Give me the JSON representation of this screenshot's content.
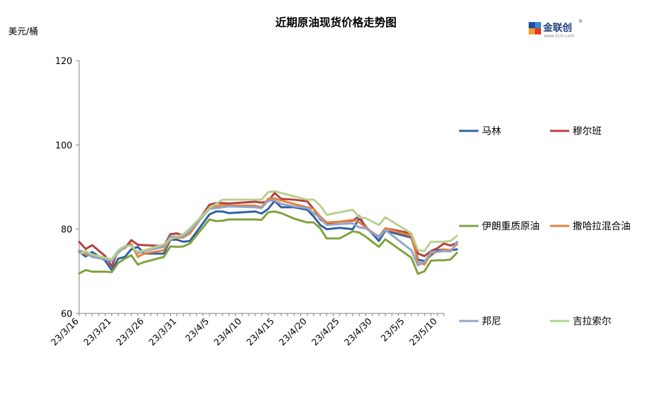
{
  "chart_data": {
    "type": "line",
    "title": "近期原油现货价格走势图",
    "ylabel": "美元/桶",
    "xlabel": "",
    "ylim": [
      60,
      120
    ],
    "yticks": [
      "60",
      "80",
      "100",
      "120"
    ],
    "xtick_labels": [
      "23/3/16",
      "23/3/21",
      "23/3/26",
      "23/3/31",
      "23/4/5",
      "23/4/10",
      "23/4/15",
      "23/4/20",
      "23/4/25",
      "23/4/30",
      "23/5/5",
      "23/5/10"
    ],
    "x_range": [
      "2023-03-16",
      "2023-05-11"
    ],
    "grid": false,
    "legend": "right",
    "series": [
      {
        "name": "马林",
        "color": "#2e5fa0",
        "points": [
          [
            "2023-03-16",
            74.6
          ],
          [
            "2023-03-17",
            73.5
          ],
          [
            "2023-03-18",
            74.6
          ],
          [
            "2023-03-20",
            72.5
          ],
          [
            "2023-03-21",
            70.3
          ],
          [
            "2023-03-22",
            73.0
          ],
          [
            "2023-03-23",
            73.4
          ],
          [
            "2023-03-24",
            75.2
          ],
          [
            "2023-03-25",
            75.8
          ],
          [
            "2023-03-26",
            74.2
          ],
          [
            "2023-03-29",
            74.2
          ],
          [
            "2023-03-30",
            77.5
          ],
          [
            "2023-03-31",
            77.5
          ],
          [
            "2023-04-01",
            77.0
          ],
          [
            "2023-04-02",
            77.2
          ],
          [
            "2023-04-05",
            83.5
          ],
          [
            "2023-04-06",
            84.2
          ],
          [
            "2023-04-07",
            84.2
          ],
          [
            "2023-04-08",
            83.8
          ],
          [
            "2023-04-12",
            84.2
          ],
          [
            "2023-04-13",
            83.7
          ],
          [
            "2023-04-14",
            84.8
          ],
          [
            "2023-04-15",
            86.7
          ],
          [
            "2023-04-16",
            85.2
          ],
          [
            "2023-04-18",
            85.2
          ],
          [
            "2023-04-20",
            84.6
          ],
          [
            "2023-04-21",
            83.0
          ],
          [
            "2023-04-22",
            81.0
          ],
          [
            "2023-04-23",
            80.0
          ],
          [
            "2023-04-25",
            80.3
          ],
          [
            "2023-04-27",
            80.0
          ],
          [
            "2023-04-28",
            82.6
          ],
          [
            "2023-04-29",
            80.6
          ],
          [
            "2023-05-01",
            77.2
          ],
          [
            "2023-05-02",
            79.6
          ],
          [
            "2023-05-06",
            78.0
          ],
          [
            "2023-05-07",
            72.8
          ],
          [
            "2023-05-08",
            72.4
          ],
          [
            "2023-05-09",
            73.8
          ],
          [
            "2023-05-10",
            75.0
          ],
          [
            "2023-05-11",
            75.2
          ],
          [
            "2023-05-12",
            75.0
          ],
          [
            "2023-05-13",
            75.2
          ]
        ]
      },
      {
        "name": "穆尔班",
        "color": "#b5403c",
        "points": [
          [
            "2023-03-16",
            77.0
          ],
          [
            "2023-03-17",
            75.3
          ],
          [
            "2023-03-18",
            76.2
          ],
          [
            "2023-03-20",
            73.6
          ],
          [
            "2023-03-21",
            71.2
          ],
          [
            "2023-03-22",
            75.0
          ],
          [
            "2023-03-23",
            75.5
          ],
          [
            "2023-03-24",
            77.4
          ],
          [
            "2023-03-25",
            76.3
          ],
          [
            "2023-03-26",
            76.2
          ],
          [
            "2023-03-29",
            76.0
          ],
          [
            "2023-03-30",
            78.8
          ],
          [
            "2023-03-31",
            79.0
          ],
          [
            "2023-04-01",
            78.5
          ],
          [
            "2023-04-02",
            79.2
          ],
          [
            "2023-04-05",
            85.8
          ],
          [
            "2023-04-06",
            86.2
          ],
          [
            "2023-04-07",
            86.2
          ],
          [
            "2023-04-08",
            86.1
          ],
          [
            "2023-04-12",
            86.5
          ],
          [
            "2023-04-13",
            86.3
          ],
          [
            "2023-04-14",
            86.6
          ],
          [
            "2023-04-15",
            88.6
          ],
          [
            "2023-04-16",
            87.2
          ],
          [
            "2023-04-18",
            87.0
          ],
          [
            "2023-04-20",
            86.6
          ],
          [
            "2023-04-21",
            84.8
          ],
          [
            "2023-04-22",
            82.3
          ],
          [
            "2023-04-23",
            81.3
          ],
          [
            "2023-04-25",
            81.8
          ],
          [
            "2023-04-27",
            82.0
          ],
          [
            "2023-04-28",
            83.1
          ],
          [
            "2023-04-29",
            80.3
          ],
          [
            "2023-05-01",
            78.2
          ],
          [
            "2023-05-02",
            80.2
          ],
          [
            "2023-05-06",
            79.0
          ],
          [
            "2023-05-07",
            74.2
          ],
          [
            "2023-05-08",
            73.6
          ],
          [
            "2023-05-09",
            74.8
          ],
          [
            "2023-05-10",
            75.5
          ],
          [
            "2023-05-11",
            76.6
          ],
          [
            "2023-05-12",
            76.1
          ],
          [
            "2023-05-13",
            76.8
          ]
        ]
      },
      {
        "name": "伊朗重质原油",
        "color": "#7fa23a",
        "points": [
          [
            "2023-03-16",
            69.5
          ],
          [
            "2023-03-17",
            70.3
          ],
          [
            "2023-03-18",
            69.9
          ],
          [
            "2023-03-20",
            69.9
          ],
          [
            "2023-03-21",
            69.8
          ],
          [
            "2023-03-22",
            72.0
          ],
          [
            "2023-03-23",
            73.0
          ],
          [
            "2023-03-24",
            73.8
          ],
          [
            "2023-03-25",
            71.6
          ],
          [
            "2023-03-26",
            72.2
          ],
          [
            "2023-03-29",
            73.4
          ],
          [
            "2023-03-30",
            75.9
          ],
          [
            "2023-03-31",
            75.8
          ],
          [
            "2023-04-01",
            75.9
          ],
          [
            "2023-04-02",
            76.6
          ],
          [
            "2023-04-05",
            82.3
          ],
          [
            "2023-04-06",
            81.9
          ],
          [
            "2023-04-07",
            82.0
          ],
          [
            "2023-04-08",
            82.3
          ],
          [
            "2023-04-12",
            82.3
          ],
          [
            "2023-04-13",
            82.2
          ],
          [
            "2023-04-14",
            84.0
          ],
          [
            "2023-04-15",
            84.2
          ],
          [
            "2023-04-16",
            83.8
          ],
          [
            "2023-04-18",
            82.5
          ],
          [
            "2023-04-20",
            81.6
          ],
          [
            "2023-04-21",
            81.6
          ],
          [
            "2023-04-22",
            80.2
          ],
          [
            "2023-04-23",
            77.8
          ],
          [
            "2023-04-25",
            77.8
          ],
          [
            "2023-04-27",
            79.5
          ],
          [
            "2023-04-28",
            79.2
          ],
          [
            "2023-04-29",
            78.2
          ],
          [
            "2023-05-01",
            75.8
          ],
          [
            "2023-05-02",
            77.6
          ],
          [
            "2023-05-06",
            73.2
          ],
          [
            "2023-05-07",
            69.4
          ],
          [
            "2023-05-08",
            70.0
          ],
          [
            "2023-05-09",
            72.5
          ],
          [
            "2023-05-10",
            72.6
          ],
          [
            "2023-05-11",
            72.6
          ],
          [
            "2023-05-12",
            72.8
          ],
          [
            "2023-05-13",
            74.4
          ]
        ]
      },
      {
        "name": "撒哈拉混合油",
        "color": "#e8813a",
        "points": [
          [
            "2023-03-16",
            74.8
          ],
          [
            "2023-03-17",
            74.0
          ],
          [
            "2023-03-18",
            73.6
          ],
          [
            "2023-03-20",
            73.2
          ],
          [
            "2023-03-21",
            72.5
          ],
          [
            "2023-03-22",
            74.6
          ],
          [
            "2023-03-23",
            75.6
          ],
          [
            "2023-03-24",
            76.5
          ],
          [
            "2023-03-25",
            73.4
          ],
          [
            "2023-03-26",
            74.2
          ],
          [
            "2023-03-29",
            75.0
          ],
          [
            "2023-03-30",
            77.8
          ],
          [
            "2023-03-31",
            78.0
          ],
          [
            "2023-04-01",
            78.0
          ],
          [
            "2023-04-02",
            79.0
          ],
          [
            "2023-04-05",
            85.2
          ],
          [
            "2023-04-06",
            85.4
          ],
          [
            "2023-04-07",
            85.8
          ],
          [
            "2023-04-08",
            85.6
          ],
          [
            "2023-04-12",
            85.6
          ],
          [
            "2023-04-13",
            85.2
          ],
          [
            "2023-04-14",
            87.2
          ],
          [
            "2023-04-15",
            87.3
          ],
          [
            "2023-04-16",
            86.8
          ],
          [
            "2023-04-18",
            86.0
          ],
          [
            "2023-04-20",
            85.2
          ],
          [
            "2023-04-21",
            84.8
          ],
          [
            "2023-04-22",
            83.0
          ],
          [
            "2023-04-23",
            81.6
          ],
          [
            "2023-04-25",
            81.8
          ],
          [
            "2023-04-27",
            82.2
          ],
          [
            "2023-04-28",
            81.6
          ],
          [
            "2023-04-29",
            80.4
          ],
          [
            "2023-05-01",
            78.1
          ],
          [
            "2023-05-02",
            80.2
          ],
          [
            "2023-05-06",
            78.4
          ],
          [
            "2023-05-07",
            72.2
          ],
          [
            "2023-05-08",
            71.6
          ],
          [
            "2023-05-09",
            74.2
          ],
          [
            "2023-05-10",
            74.6
          ],
          [
            "2023-05-11",
            75.2
          ],
          [
            "2023-05-12",
            75.0
          ],
          [
            "2023-05-13",
            76.4
          ]
        ]
      },
      {
        "name": "邦尼",
        "color": "#8fa5cc",
        "points": [
          [
            "2023-03-16",
            75.0
          ],
          [
            "2023-03-17",
            74.4
          ],
          [
            "2023-03-18",
            73.4
          ],
          [
            "2023-03-20",
            72.8
          ],
          [
            "2023-03-21",
            72.4
          ],
          [
            "2023-03-22",
            74.4
          ],
          [
            "2023-03-23",
            75.8
          ],
          [
            "2023-03-24",
            76.2
          ],
          [
            "2023-03-25",
            74.2
          ],
          [
            "2023-03-26",
            74.8
          ],
          [
            "2023-03-29",
            75.8
          ],
          [
            "2023-03-30",
            78.2
          ],
          [
            "2023-03-31",
            78.3
          ],
          [
            "2023-04-01",
            78.2
          ],
          [
            "2023-04-02",
            79.6
          ],
          [
            "2023-04-05",
            84.8
          ],
          [
            "2023-04-06",
            85.0
          ],
          [
            "2023-04-07",
            85.2
          ],
          [
            "2023-04-08",
            85.4
          ],
          [
            "2023-04-12",
            85.2
          ],
          [
            "2023-04-13",
            85.0
          ],
          [
            "2023-04-14",
            86.8
          ],
          [
            "2023-04-15",
            86.8
          ],
          [
            "2023-04-16",
            86.0
          ],
          [
            "2023-04-18",
            85.4
          ],
          [
            "2023-04-20",
            85.0
          ],
          [
            "2023-04-21",
            83.8
          ],
          [
            "2023-04-22",
            82.6
          ],
          [
            "2023-04-23",
            81.0
          ],
          [
            "2023-04-25",
            81.2
          ],
          [
            "2023-04-27",
            81.4
          ],
          [
            "2023-04-28",
            80.4
          ],
          [
            "2023-04-29",
            80.2
          ],
          [
            "2023-05-01",
            78.0
          ],
          [
            "2023-05-02",
            79.8
          ],
          [
            "2023-05-06",
            75.0
          ],
          [
            "2023-05-07",
            71.4
          ],
          [
            "2023-05-08",
            72.2
          ],
          [
            "2023-05-09",
            74.6
          ],
          [
            "2023-05-10",
            74.6
          ],
          [
            "2023-05-11",
            74.8
          ],
          [
            "2023-05-12",
            74.7
          ],
          [
            "2023-05-13",
            77.0
          ]
        ]
      },
      {
        "name": "吉拉索尔",
        "color": "#b6d08e",
        "points": [
          [
            "2023-03-16",
            74.0
          ],
          [
            "2023-03-17",
            74.8
          ],
          [
            "2023-03-18",
            74.0
          ],
          [
            "2023-03-20",
            73.2
          ],
          [
            "2023-03-21",
            72.8
          ],
          [
            "2023-03-22",
            75.0
          ],
          [
            "2023-03-23",
            76.0
          ],
          [
            "2023-03-24",
            76.0
          ],
          [
            "2023-03-25",
            74.6
          ],
          [
            "2023-03-26",
            75.0
          ],
          [
            "2023-03-29",
            76.4
          ],
          [
            "2023-03-30",
            77.6
          ],
          [
            "2023-03-31",
            78.2
          ],
          [
            "2023-04-01",
            78.8
          ],
          [
            "2023-04-02",
            80.2
          ],
          [
            "2023-04-05",
            85.0
          ],
          [
            "2023-04-06",
            86.0
          ],
          [
            "2023-04-07",
            87.0
          ],
          [
            "2023-04-08",
            87.0
          ],
          [
            "2023-04-12",
            87.0
          ],
          [
            "2023-04-13",
            87.0
          ],
          [
            "2023-04-14",
            88.8
          ],
          [
            "2023-04-15",
            89.0
          ],
          [
            "2023-04-16",
            88.6
          ],
          [
            "2023-04-18",
            87.8
          ],
          [
            "2023-04-20",
            87.0
          ],
          [
            "2023-04-21",
            87.0
          ],
          [
            "2023-04-22",
            85.6
          ],
          [
            "2023-04-23",
            83.4
          ],
          [
            "2023-04-25",
            84.0
          ],
          [
            "2023-04-27",
            84.6
          ],
          [
            "2023-04-28",
            82.8
          ],
          [
            "2023-04-29",
            82.6
          ],
          [
            "2023-05-01",
            81.0
          ],
          [
            "2023-05-02",
            82.8
          ],
          [
            "2023-05-06",
            79.0
          ],
          [
            "2023-05-07",
            75.0
          ],
          [
            "2023-05-08",
            74.8
          ],
          [
            "2023-05-09",
            77.0
          ],
          [
            "2023-05-10",
            77.0
          ],
          [
            "2023-05-11",
            77.0
          ],
          [
            "2023-05-12",
            77.2
          ],
          [
            "2023-05-13",
            78.4
          ]
        ]
      }
    ]
  },
  "logo": {
    "text": "金联创",
    "sub": "www.315i.com",
    "mark": "®"
  }
}
